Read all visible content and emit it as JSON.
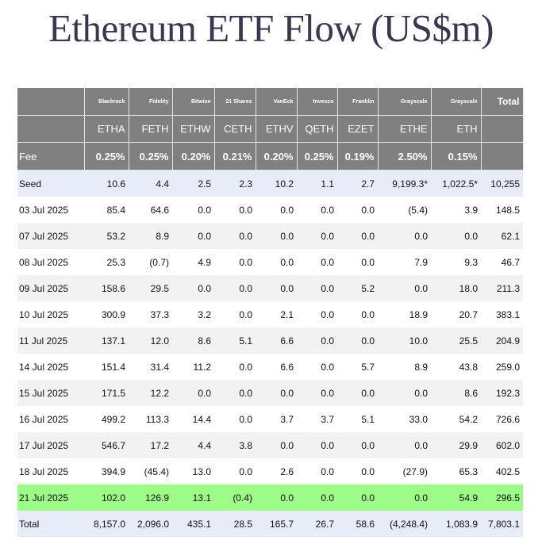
{
  "title": "Ethereum ETF Flow (US$m)",
  "providers": [
    "Blackrock",
    "Fidelity",
    "Bitwise",
    "21 Shares",
    "VanEck",
    "Invesco",
    "Franklin",
    "Grayscale",
    "Grayscale"
  ],
  "total_label": "Total",
  "tickers": [
    "ETHA",
    "FETH",
    "ETHW",
    "CETH",
    "ETHV",
    "QETH",
    "EZET",
    "ETHE",
    "ETH"
  ],
  "fee": {
    "label": "Fee",
    "values": [
      "0.25%",
      "0.25%",
      "0.20%",
      "0.21%",
      "0.20%",
      "0.25%",
      "0.19%",
      "2.50%",
      "0.15%"
    ]
  },
  "rows": [
    {
      "label": "Seed",
      "values": [
        "10.6",
        "4.4",
        "2.5",
        "2.3",
        "10.2",
        "1.1",
        "2.7",
        "9,199.3*",
        "1,022.5*"
      ],
      "total": "10,255"
    },
    {
      "label": "03 Jul 2025",
      "values": [
        "85.4",
        "64.6",
        "0.0",
        "0.0",
        "0.0",
        "0.0",
        "0.0",
        "(5.4)",
        "3.9"
      ],
      "total": "148.5"
    },
    {
      "label": "07 Jul 2025",
      "values": [
        "53.2",
        "8.9",
        "0.0",
        "0.0",
        "0.0",
        "0.0",
        "0.0",
        "0.0",
        "0.0"
      ],
      "total": "62.1"
    },
    {
      "label": "08 Jul 2025",
      "values": [
        "25.3",
        "(0.7)",
        "4.9",
        "0.0",
        "0.0",
        "0.0",
        "0.0",
        "7.9",
        "9.3"
      ],
      "total": "46.7"
    },
    {
      "label": "09 Jul 2025",
      "values": [
        "158.6",
        "29.5",
        "0.0",
        "0.0",
        "0.0",
        "0.0",
        "5.2",
        "0.0",
        "18.0"
      ],
      "total": "211.3"
    },
    {
      "label": "10 Jul 2025",
      "values": [
        "300.9",
        "37.3",
        "3.2",
        "0.0",
        "2.1",
        "0.0",
        "0.0",
        "18.9",
        "20.7"
      ],
      "total": "383.1"
    },
    {
      "label": "11 Jul 2025",
      "values": [
        "137.1",
        "12.0",
        "8.6",
        "5.1",
        "6.6",
        "0.0",
        "0.0",
        "10.0",
        "25.5"
      ],
      "total": "204.9"
    },
    {
      "label": "14 Jul 2025",
      "values": [
        "151.4",
        "31.4",
        "11.2",
        "0.0",
        "6.6",
        "0.0",
        "5.7",
        "8.9",
        "43.8"
      ],
      "total": "259.0"
    },
    {
      "label": "15 Jul 2025",
      "values": [
        "171.5",
        "12.2",
        "0.0",
        "0.0",
        "0.0",
        "0.0",
        "0.0",
        "0.0",
        "8.6"
      ],
      "total": "192.3"
    },
    {
      "label": "16 Jul 2025",
      "values": [
        "499.2",
        "113.3",
        "14.4",
        "0.0",
        "3.7",
        "3.7",
        "5.1",
        "33.0",
        "54.2"
      ],
      "total": "726.6"
    },
    {
      "label": "17 Jul 2025",
      "values": [
        "546.7",
        "17.2",
        "4.4",
        "3.8",
        "0.0",
        "0.0",
        "0.0",
        "0.0",
        "29.9"
      ],
      "total": "602.0"
    },
    {
      "label": "18 Jul 2025",
      "values": [
        "394.9",
        "(45.4)",
        "13.0",
        "0.0",
        "2.6",
        "0.0",
        "0.0",
        "(27.9)",
        "65.3"
      ],
      "total": "402.5"
    },
    {
      "label": "21 Jul 2025",
      "values": [
        "102.0",
        "126.9",
        "13.1",
        "(0.4)",
        "0.0",
        "0.0",
        "0.0",
        "0.0",
        "54.9"
      ],
      "total": "296.5"
    },
    {
      "label": "Total",
      "values": [
        "8,157.0",
        "2,096.0",
        "435.1",
        "28.5",
        "165.7",
        "26.7",
        "58.6",
        "(4,248.4)",
        "1,083.9"
      ],
      "total": "7,803.1"
    }
  ],
  "colors": {
    "header_bg": "#808080",
    "seed_bg": "#e8ecf8",
    "stripe_bg": "#f2f2f2",
    "highlight_bg": "#9efc88",
    "negative": "#e01818",
    "title": "#38384f"
  }
}
